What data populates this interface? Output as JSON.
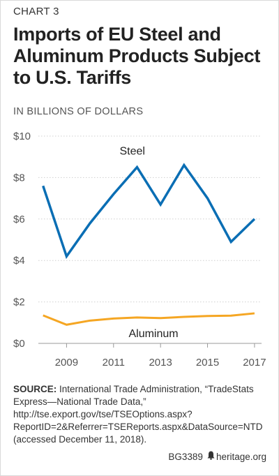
{
  "chart_label": "CHART 3",
  "chart_data": {
    "type": "line",
    "title": "Imports of EU Steel and Aluminum Products Subject to U.S. Tariffs",
    "units_label": "IN BILLIONS OF DOLLARS",
    "x": [
      2008,
      2009,
      2010,
      2011,
      2012,
      2013,
      2014,
      2015,
      2016,
      2017
    ],
    "x_ticks": [
      "2009",
      "2011",
      "2013",
      "2015",
      "2017"
    ],
    "y_ticks": [
      "$0",
      "$2",
      "$4",
      "$6",
      "$8",
      "$10"
    ],
    "ylim": [
      0,
      10
    ],
    "grid": true,
    "series": [
      {
        "name": "Steel",
        "color": "#0a6eb4",
        "values": [
          7.6,
          4.2,
          5.8,
          7.2,
          8.5,
          6.7,
          8.6,
          7.0,
          4.9,
          6.0
        ]
      },
      {
        "name": "Aluminum",
        "color": "#f5a623",
        "values": [
          1.35,
          0.9,
          1.1,
          1.2,
          1.25,
          1.22,
          1.28,
          1.32,
          1.34,
          1.45
        ]
      }
    ]
  },
  "source": {
    "label": "SOURCE:",
    "text": "International Trade Administration, “TradeStats Express—National Trade Data,” http://tse.export.gov/tse/TSEOptions.aspx?ReportID=2&Referrer=TSEReports.aspx&DataSource=NTD (accessed December 11, 2018)."
  },
  "footer": {
    "code": "BG3389",
    "site": "heritage.org",
    "logo_icon": "bell-icon"
  }
}
